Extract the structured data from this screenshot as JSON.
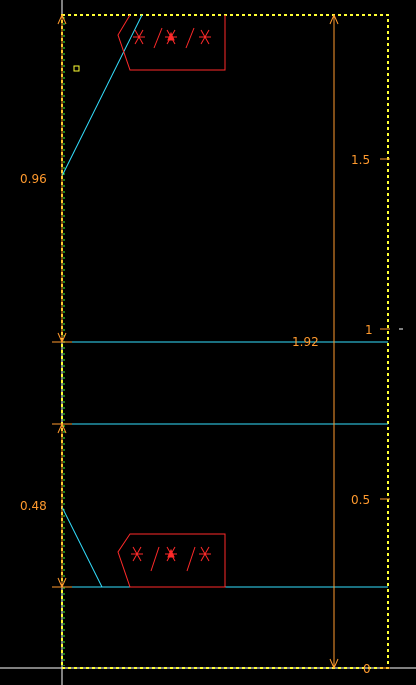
{
  "colors": {
    "background": "#000000",
    "frame": "#ffff33",
    "dimension": "#ff9a2e",
    "member": "#33e0ff",
    "symbol": "#ff2a2a",
    "axis": "#ffffff"
  },
  "dimensions": {
    "upper_left": "0.96",
    "lower_left": "0.48",
    "center_mid": "1.92"
  },
  "scale": {
    "ticks": [
      "0",
      "0.5",
      "1",
      "1.5"
    ]
  },
  "icons": {
    "upper_symbol": "weld-symbol",
    "lower_symbol": "weld-symbol",
    "marker": "small-square-marker"
  }
}
